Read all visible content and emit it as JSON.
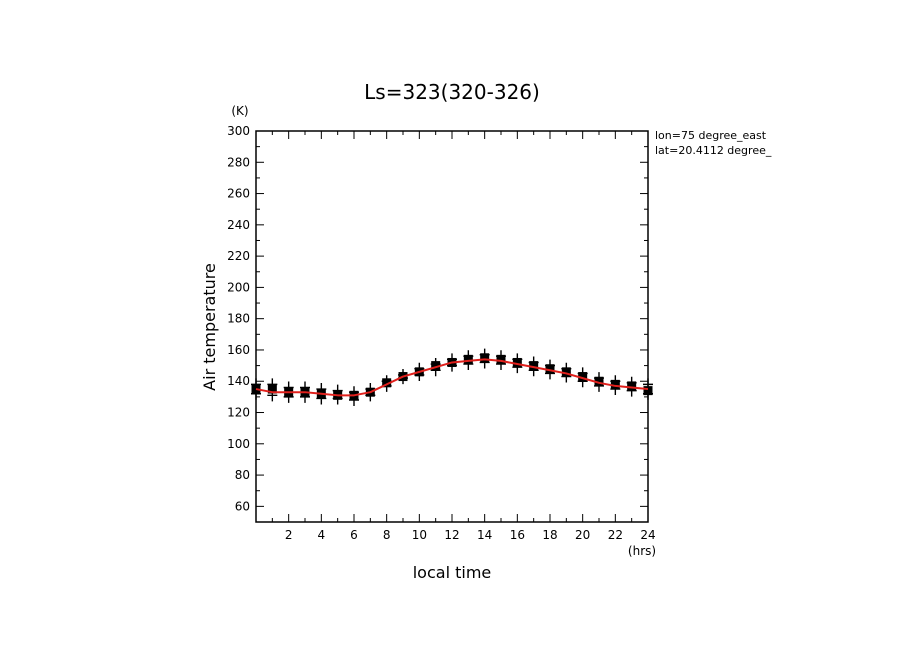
{
  "chart_data": {
    "type": "line",
    "title": "Ls=323(320-326)",
    "xlabel": "local time",
    "ylabel": "Air temperature",
    "x_unit": "(hrs)",
    "y_unit": "(K)",
    "annotations": [
      "lon=75 degree_east",
      "lat=20.4112 degree_"
    ],
    "xlim": [
      0,
      24
    ],
    "ylim": [
      50,
      300
    ],
    "x_ticks": [
      2,
      4,
      6,
      8,
      10,
      12,
      14,
      16,
      18,
      20,
      22,
      24
    ],
    "y_ticks": [
      60,
      80,
      100,
      120,
      140,
      160,
      180,
      200,
      220,
      240,
      260,
      280,
      300
    ],
    "grid": false,
    "series": [
      {
        "style": "red-line",
        "color": "#e0201c",
        "x": [
          0,
          1,
          2,
          3,
          4,
          5,
          6,
          7,
          8,
          9,
          10,
          11,
          12,
          13,
          14,
          15,
          16,
          17,
          18,
          19,
          20,
          21,
          22,
          23,
          24
        ],
        "y": [
          135,
          133,
          133,
          133,
          132,
          131,
          131,
          133,
          138,
          143,
          146,
          149,
          152,
          153,
          154,
          153,
          151,
          149,
          147,
          145,
          142,
          139,
          137,
          136,
          135
        ]
      },
      {
        "style": "square-markers",
        "color": "#000000",
        "x": [
          0,
          1,
          2,
          3,
          4,
          5,
          6,
          7,
          8,
          9,
          10,
          11,
          12,
          13,
          14,
          15,
          16,
          17,
          18,
          19,
          20,
          21,
          22,
          23,
          24
        ],
        "y": [
          135,
          135,
          133,
          133,
          132,
          131,
          131,
          133,
          139,
          143,
          146,
          150,
          152,
          154,
          155,
          154,
          152,
          150,
          148,
          146,
          143,
          140,
          138,
          137,
          134
        ]
      },
      {
        "style": "plus-markers",
        "color": "#000000",
        "x": [
          0,
          1,
          2,
          3,
          4,
          5,
          6,
          7,
          8,
          9,
          10,
          11,
          12,
          13,
          14,
          15,
          16,
          17,
          18,
          19,
          20,
          21,
          22,
          23,
          24,
          0,
          1,
          2,
          3,
          4,
          5,
          6,
          7,
          8,
          9,
          10,
          11,
          12,
          13,
          14,
          15,
          16,
          17,
          18,
          19,
          20,
          21,
          22,
          23,
          24
        ],
        "y": [
          138,
          138,
          136,
          136,
          135,
          134,
          133,
          135,
          140,
          144,
          148,
          151,
          154,
          156,
          157,
          156,
          154,
          152,
          150,
          148,
          145,
          142,
          140,
          139,
          138,
          132,
          131,
          130,
          130,
          129,
          129,
          128,
          131,
          137,
          142,
          144,
          147,
          150,
          151,
          152,
          151,
          149,
          147,
          145,
          143,
          140,
          137,
          135,
          134,
          132
        ]
      }
    ]
  }
}
